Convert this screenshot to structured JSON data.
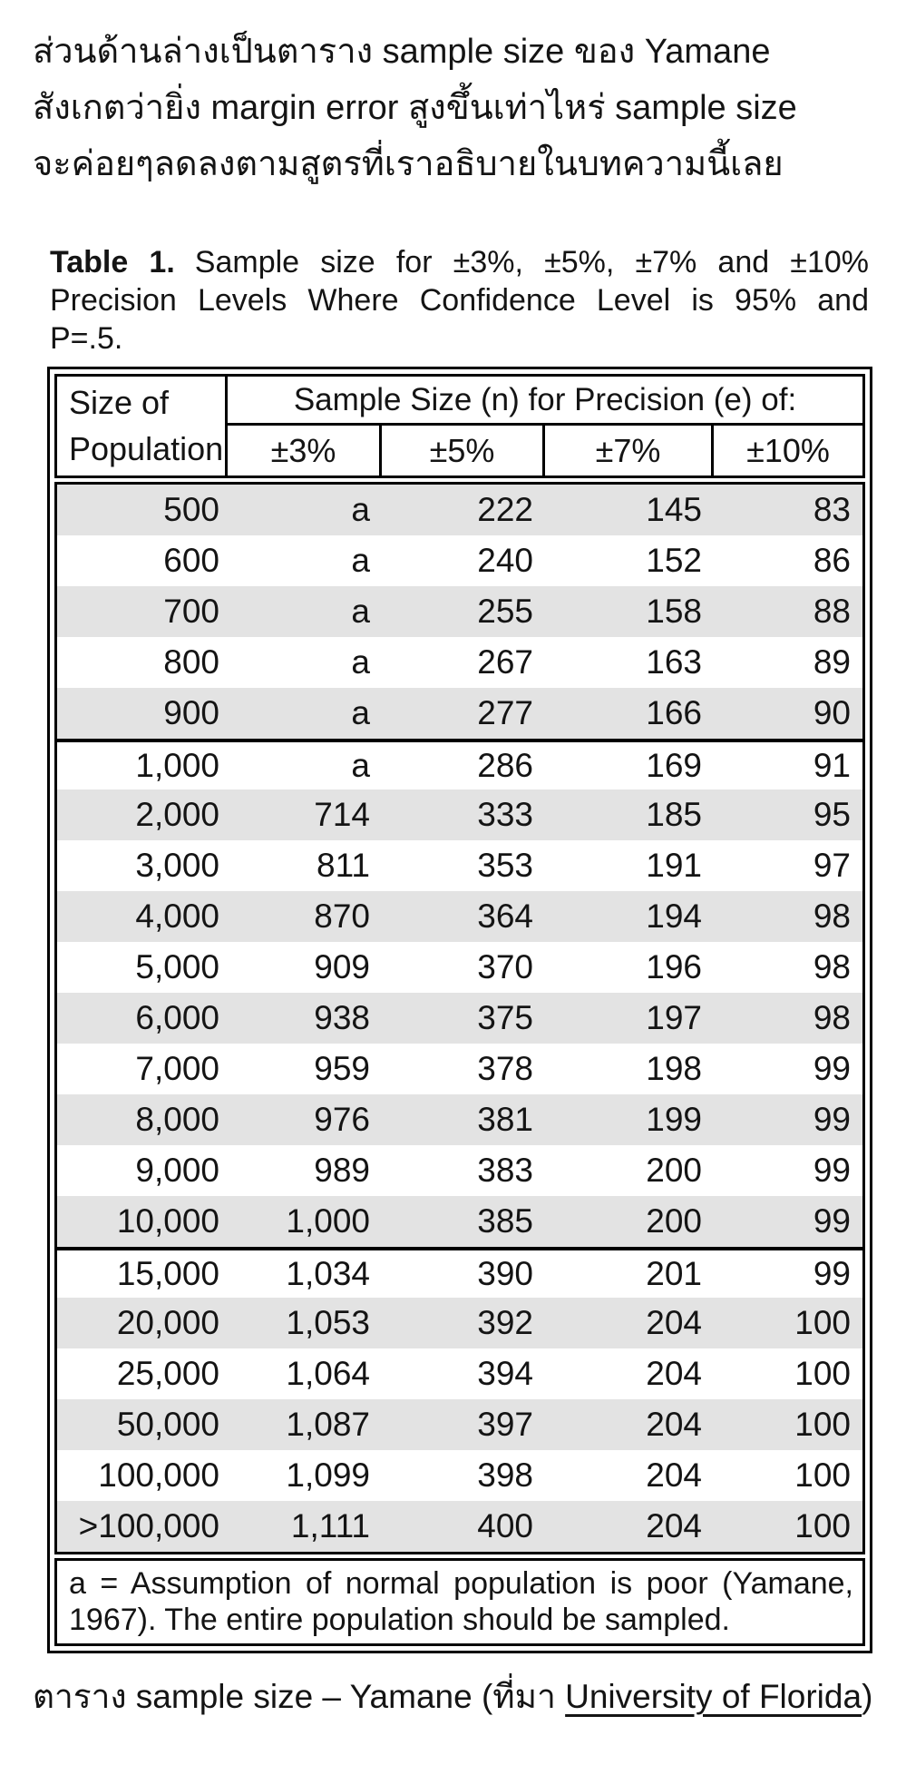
{
  "intro": {
    "lines": [
      "ส่วนด้านล่างเป็นตาราง sample size ของ Yamane",
      "สังเกตว่ายิ่ง margin error สูงขึ้นเท่าไหร่ sample size",
      "จะค่อยๆลดลงตามสูตรที่เราอธิบายในบทความนี้เลย"
    ]
  },
  "figure": {
    "title": {
      "line1_bold": "Table 1.",
      "line1_rest": "Sample size for ±3%, ±5%, ±7% and ±10%",
      "line2": "Precision Levels Where Confidence Level is 95% and",
      "line3": "P=.5."
    },
    "table": {
      "header": {
        "population_line1": "Size of",
        "population_line2": "Population",
        "span_label": "Sample Size (n) for Precision (e) of:",
        "precision_columns": [
          "±3%",
          "±5%",
          "±7%",
          "±10%"
        ]
      },
      "columns": [
        "Size of Population",
        "±3%",
        "±5%",
        "±7%",
        "±10%"
      ],
      "rows": [
        [
          "500",
          "a",
          "222",
          "145",
          "83"
        ],
        [
          "600",
          "a",
          "240",
          "152",
          "86"
        ],
        [
          "700",
          "a",
          "255",
          "158",
          "88"
        ],
        [
          "800",
          "a",
          "267",
          "163",
          "89"
        ],
        [
          "900",
          "a",
          "277",
          "166",
          "90"
        ],
        [
          "1,000",
          "a",
          "286",
          "169",
          "91"
        ],
        [
          "2,000",
          "714",
          "333",
          "185",
          "95"
        ],
        [
          "3,000",
          "811",
          "353",
          "191",
          "97"
        ],
        [
          "4,000",
          "870",
          "364",
          "194",
          "98"
        ],
        [
          "5,000",
          "909",
          "370",
          "196",
          "98"
        ],
        [
          "6,000",
          "938",
          "375",
          "197",
          "98"
        ],
        [
          "7,000",
          "959",
          "378",
          "198",
          "99"
        ],
        [
          "8,000",
          "976",
          "381",
          "199",
          "99"
        ],
        [
          "9,000",
          "989",
          "383",
          "200",
          "99"
        ],
        [
          "10,000",
          "1,000",
          "385",
          "200",
          "99"
        ],
        [
          "15,000",
          "1,034",
          "390",
          "201",
          "99"
        ],
        [
          "20,000",
          "1,053",
          "392",
          "204",
          "100"
        ],
        [
          "25,000",
          "1,064",
          "394",
          "204",
          "100"
        ],
        [
          "50,000",
          "1,087",
          "397",
          "204",
          "100"
        ],
        [
          "100,000",
          "1,099",
          "398",
          "204",
          "100"
        ],
        [
          ">100,000",
          "1,111",
          "400",
          "204",
          "100"
        ]
      ],
      "group_break_row_indexes": [
        5,
        15
      ],
      "footnote": {
        "line1": "a = Assumption of normal population is poor (Yamane,",
        "line2": "1967).  The entire population should be sampled."
      }
    }
  },
  "caption": {
    "prefix": "ตาราง sample size – Yamane (ที่มา ",
    "link_text": "University of Florida",
    "suffix": ")"
  },
  "colors": {
    "row_stripe": "#e3e3e3",
    "table_border": "#000000",
    "text": "#141414"
  }
}
